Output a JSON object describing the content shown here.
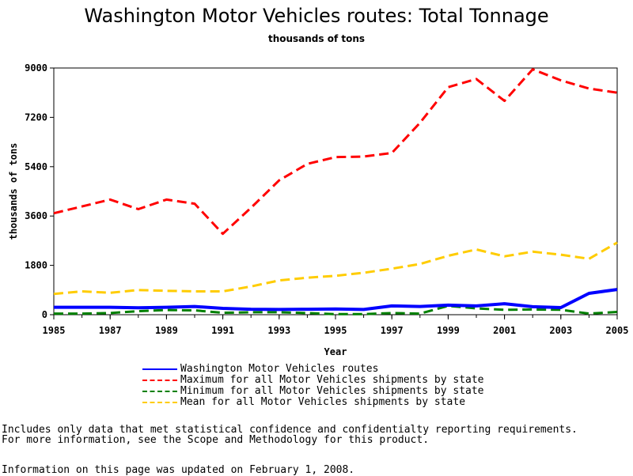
{
  "chart_data": {
    "type": "line",
    "title": "Washington Motor Vehicles routes: Total Tonnage",
    "subtitle": "thousands of tons",
    "xlabel": "Year",
    "ylabel": "thousands of tons",
    "xlim": [
      1985,
      2005
    ],
    "ylim": [
      0,
      9000
    ],
    "x_ticks": [
      "1985",
      "1987",
      "1989",
      "1991",
      "1993",
      "1995",
      "1997",
      "1999",
      "2001",
      "2003",
      "2005"
    ],
    "y_ticks": [
      "0",
      "1800",
      "3600",
      "5400",
      "7200",
      "9000"
    ],
    "x": [
      1985,
      1986,
      1987,
      1988,
      1989,
      1990,
      1991,
      1992,
      1993,
      1994,
      1995,
      1996,
      1997,
      1998,
      1999,
      2000,
      2001,
      2002,
      2003,
      2004,
      2005
    ],
    "series": [
      {
        "name": "Washington Motor Vehicles routes",
        "color": "#0000ff",
        "dash": "solid",
        "values": [
          270,
          270,
          270,
          250,
          270,
          300,
          230,
          200,
          190,
          200,
          210,
          190,
          320,
          300,
          350,
          320,
          400,
          290,
          260,
          780,
          920
        ]
      },
      {
        "name": "Maximum for all Motor Vehicles shipments by state",
        "color": "#ff0000",
        "dash": "dashed",
        "values": [
          3700,
          3950,
          4200,
          3850,
          4200,
          4050,
          2950,
          3900,
          4900,
          5500,
          5750,
          5770,
          5900,
          7000,
          8300,
          8600,
          7800,
          8950,
          8550,
          8250,
          8100
        ]
      },
      {
        "name": "Minimum for all Motor Vehicles shipments by state",
        "color": "#008000",
        "dash": "dashed",
        "values": [
          40,
          40,
          60,
          130,
          170,
          160,
          70,
          90,
          90,
          60,
          20,
          20,
          60,
          40,
          320,
          230,
          180,
          190,
          180,
          40,
          100
        ]
      },
      {
        "name": "Mean for all Motor Vehicles shipments by state",
        "color": "#ffcc00",
        "dash": "dashed",
        "values": [
          760,
          850,
          800,
          900,
          870,
          850,
          850,
          1030,
          1250,
          1350,
          1420,
          1530,
          1680,
          1850,
          2150,
          2380,
          2130,
          2300,
          2190,
          2040,
          2630
        ]
      }
    ]
  },
  "notes": {
    "line1": "Includes only data that met statistical confidence and confidentialty reporting requirements.",
    "line2": "For more information, see the Scope and Methodology for this product.",
    "line3": "Information on this page was updated on February 1, 2008."
  }
}
